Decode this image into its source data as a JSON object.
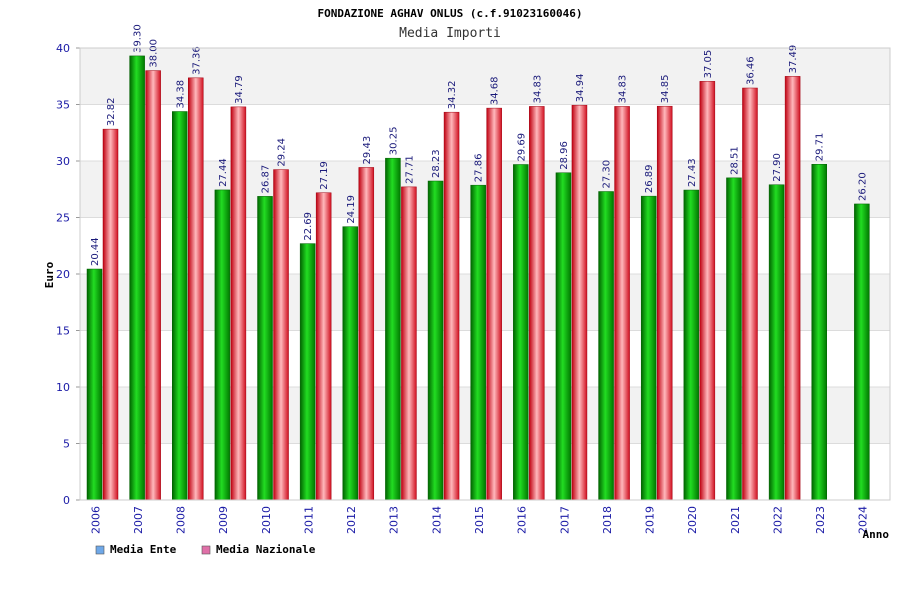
{
  "chart_data": {
    "type": "bar",
    "title": "FONDAZIONE AGHAV ONLUS (c.f.91023160046)",
    "subtitle": "Media Importi",
    "xlabel": "Anno",
    "ylabel": "Euro",
    "ylim": [
      0,
      40
    ],
    "yticks": [
      0,
      5,
      10,
      15,
      20,
      25,
      30,
      35,
      40
    ],
    "grid": true,
    "legend_position": "bottom-left",
    "categories": [
      "2006",
      "2007",
      "2008",
      "2009",
      "2010",
      "2011",
      "2012",
      "2013",
      "2014",
      "2015",
      "2016",
      "2017",
      "2018",
      "2019",
      "2020",
      "2021",
      "2022",
      "2023",
      "2024"
    ],
    "series": [
      {
        "name": "Media Ente",
        "color": "#00b400",
        "legend_color": "#6fa8e8",
        "values": [
          20.44,
          39.3,
          34.38,
          27.44,
          26.87,
          22.69,
          24.19,
          30.25,
          28.23,
          27.86,
          29.69,
          28.96,
          27.3,
          26.89,
          27.43,
          28.51,
          27.9,
          29.71,
          26.2
        ],
        "labels": [
          "20.44",
          "39.30",
          "34.38",
          "27.44",
          "26.87",
          "22.69",
          "24.19",
          "30.25",
          "28.23",
          "27.86",
          "29.69",
          "28.96",
          "27.30",
          "26.89",
          "27.43",
          "28.51",
          "27.90",
          "29.71",
          "26.20"
        ]
      },
      {
        "name": "Media Nazionale",
        "color": "#e8202a",
        "legend_color": "#e070a8",
        "values": [
          32.82,
          38.0,
          37.36,
          34.79,
          29.24,
          27.19,
          29.43,
          27.71,
          34.32,
          34.68,
          34.83,
          34.94,
          34.83,
          34.85,
          37.05,
          36.46,
          37.49,
          null,
          null
        ],
        "labels": [
          "32.82",
          "38.00",
          "37.36",
          "34.79",
          "29.24",
          "27.19",
          "29.43",
          "27.71",
          "34.32",
          "34.68",
          "34.83",
          "34.94",
          "34.83",
          "34.85",
          "37.05",
          "36.46",
          "37.49",
          null,
          null
        ]
      }
    ]
  }
}
